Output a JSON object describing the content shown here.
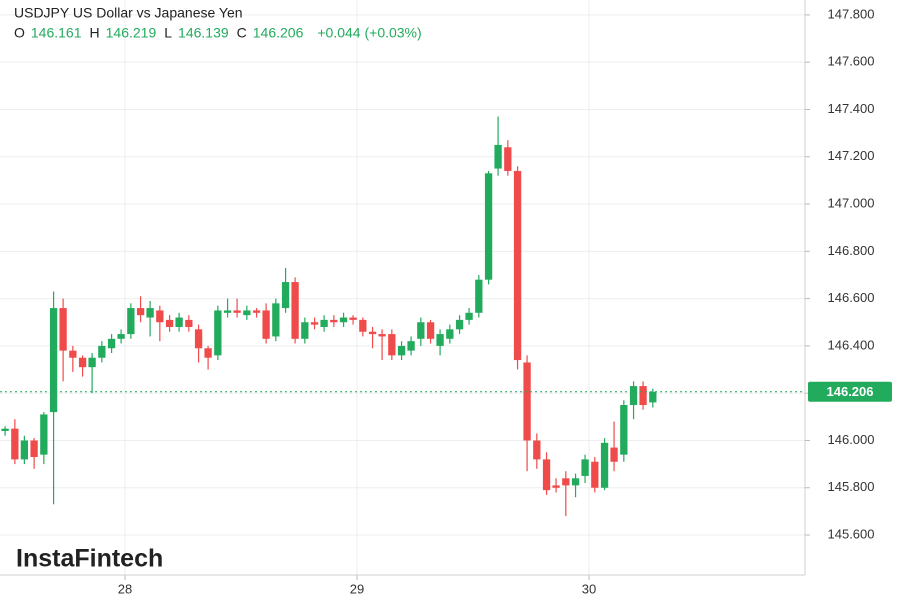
{
  "chart_data": {
    "type": "candlestick",
    "title": "USDJPY US Dollar vs Japanese Yen",
    "ohlc_legend": [
      {
        "label": "O",
        "value": 146.161
      },
      {
        "label": "H",
        "value": 146.219
      },
      {
        "label": "L",
        "value": 146.139
      },
      {
        "label": "C",
        "value": 146.206
      }
    ],
    "change": "+0.044 (+0.03%)",
    "last_price": 146.206,
    "up_color": "#22ab5d",
    "down_color": "#ef4b4b",
    "grid": true,
    "xlim": [
      27.461,
      30.931
    ],
    "xticks": [
      28,
      29,
      30
    ],
    "ylim": [
      145.431,
      147.863
    ],
    "yticks": [
      {
        "value": 145.6,
        "label": "145.600"
      },
      {
        "value": 145.8,
        "label": "145.800"
      },
      {
        "value": 146.0,
        "label": "146.000"
      },
      {
        "value": 146.2,
        "label": "146.200"
      },
      {
        "value": 146.4,
        "label": "146.400"
      },
      {
        "value": 146.6,
        "label": "146.600"
      },
      {
        "value": 146.8,
        "label": "146.800"
      },
      {
        "value": 147.0,
        "label": "147.000"
      },
      {
        "value": 147.2,
        "label": "147.200"
      },
      {
        "value": 147.4,
        "label": "147.400"
      },
      {
        "value": 147.6,
        "label": "147.600"
      },
      {
        "value": 147.8,
        "label": "147.800"
      }
    ],
    "x": [
      27.483,
      27.525,
      27.566,
      27.608,
      27.65,
      27.692,
      27.733,
      27.775,
      27.817,
      27.858,
      27.9,
      27.942,
      27.983,
      28.025,
      28.067,
      28.108,
      28.15,
      28.192,
      28.233,
      28.275,
      28.317,
      28.358,
      28.4,
      28.442,
      28.483,
      28.525,
      28.567,
      28.608,
      28.65,
      28.692,
      28.733,
      28.775,
      28.817,
      28.858,
      28.9,
      28.942,
      28.983,
      29.025,
      29.067,
      29.108,
      29.15,
      29.192,
      29.233,
      29.275,
      29.317,
      29.358,
      29.4,
      29.442,
      29.483,
      29.525,
      29.567,
      29.608,
      29.65,
      29.692,
      29.733,
      29.775,
      29.817,
      29.858,
      29.9,
      29.942,
      29.983,
      30.025,
      30.067,
      30.108,
      30.15,
      30.192,
      30.233,
      30.275
    ],
    "open": [
      146.04,
      146.05,
      145.92,
      146.0,
      145.94,
      146.12,
      146.56,
      146.38,
      146.35,
      146.31,
      146.35,
      146.39,
      146.43,
      146.45,
      146.56,
      146.52,
      146.55,
      146.51,
      146.48,
      146.51,
      146.47,
      146.39,
      146.36,
      146.54,
      146.55,
      146.53,
      146.55,
      146.55,
      146.44,
      146.56,
      146.67,
      146.43,
      146.5,
      146.48,
      146.51,
      146.5,
      146.52,
      146.51,
      146.46,
      146.45,
      146.45,
      146.36,
      146.38,
      146.43,
      146.5,
      146.4,
      146.43,
      146.47,
      146.51,
      146.54,
      146.68,
      147.15,
      147.24,
      147.14,
      146.33,
      146.0,
      145.92,
      145.81,
      145.84,
      145.81,
      145.85,
      145.91,
      145.8,
      145.97,
      145.94,
      146.15,
      146.23,
      146.161
    ],
    "high": [
      146.06,
      146.09,
      146.02,
      146.01,
      146.12,
      146.63,
      146.6,
      146.4,
      146.36,
      146.37,
      146.42,
      146.45,
      146.47,
      146.58,
      146.61,
      146.59,
      146.57,
      146.53,
      146.54,
      146.53,
      146.49,
      146.4,
      146.57,
      146.6,
      146.6,
      146.57,
      146.56,
      146.58,
      146.6,
      146.73,
      146.69,
      146.52,
      146.52,
      146.53,
      146.53,
      146.54,
      146.53,
      146.52,
      146.48,
      146.47,
      146.47,
      146.42,
      146.44,
      146.52,
      146.51,
      146.47,
      146.49,
      146.53,
      146.56,
      146.7,
      147.14,
      147.37,
      147.27,
      147.16,
      146.36,
      146.03,
      145.95,
      145.84,
      145.87,
      145.86,
      145.94,
      145.93,
      146.01,
      146.08,
      146.17,
      146.25,
      146.25,
      146.219
    ],
    "low": [
      146.02,
      145.9,
      145.9,
      145.88,
      145.9,
      145.73,
      146.25,
      146.29,
      146.27,
      146.2,
      146.33,
      146.37,
      146.41,
      146.43,
      146.5,
      146.44,
      146.42,
      146.46,
      146.46,
      146.46,
      146.33,
      146.3,
      146.34,
      146.52,
      146.52,
      146.51,
      146.52,
      146.41,
      146.42,
      146.54,
      146.41,
      146.41,
      146.47,
      146.46,
      146.48,
      146.48,
      146.49,
      146.44,
      146.39,
      146.34,
      146.34,
      146.34,
      146.36,
      146.4,
      146.41,
      146.36,
      146.41,
      146.45,
      146.49,
      146.52,
      146.66,
      147.12,
      147.12,
      146.3,
      145.87,
      145.88,
      145.77,
      145.78,
      145.68,
      145.76,
      145.82,
      145.78,
      145.79,
      145.87,
      145.91,
      146.09,
      146.13,
      146.139
    ],
    "close": [
      146.05,
      145.92,
      146.0,
      145.93,
      146.11,
      146.56,
      146.38,
      146.35,
      146.31,
      146.35,
      146.4,
      146.43,
      146.45,
      146.56,
      146.53,
      146.56,
      146.5,
      146.48,
      146.52,
      146.48,
      146.39,
      146.35,
      146.55,
      146.55,
      146.54,
      146.55,
      146.54,
      146.43,
      146.58,
      146.67,
      146.43,
      146.5,
      146.49,
      146.51,
      146.5,
      146.52,
      146.51,
      146.46,
      146.45,
      146.44,
      146.36,
      146.4,
      146.42,
      146.5,
      146.43,
      146.45,
      146.47,
      146.51,
      146.54,
      146.68,
      147.13,
      147.25,
      147.14,
      146.34,
      146.0,
      145.92,
      145.79,
      145.8,
      145.81,
      145.84,
      145.92,
      145.8,
      145.99,
      145.91,
      146.15,
      146.23,
      146.15,
      146.206
    ]
  },
  "watermark": "InstaFintech"
}
